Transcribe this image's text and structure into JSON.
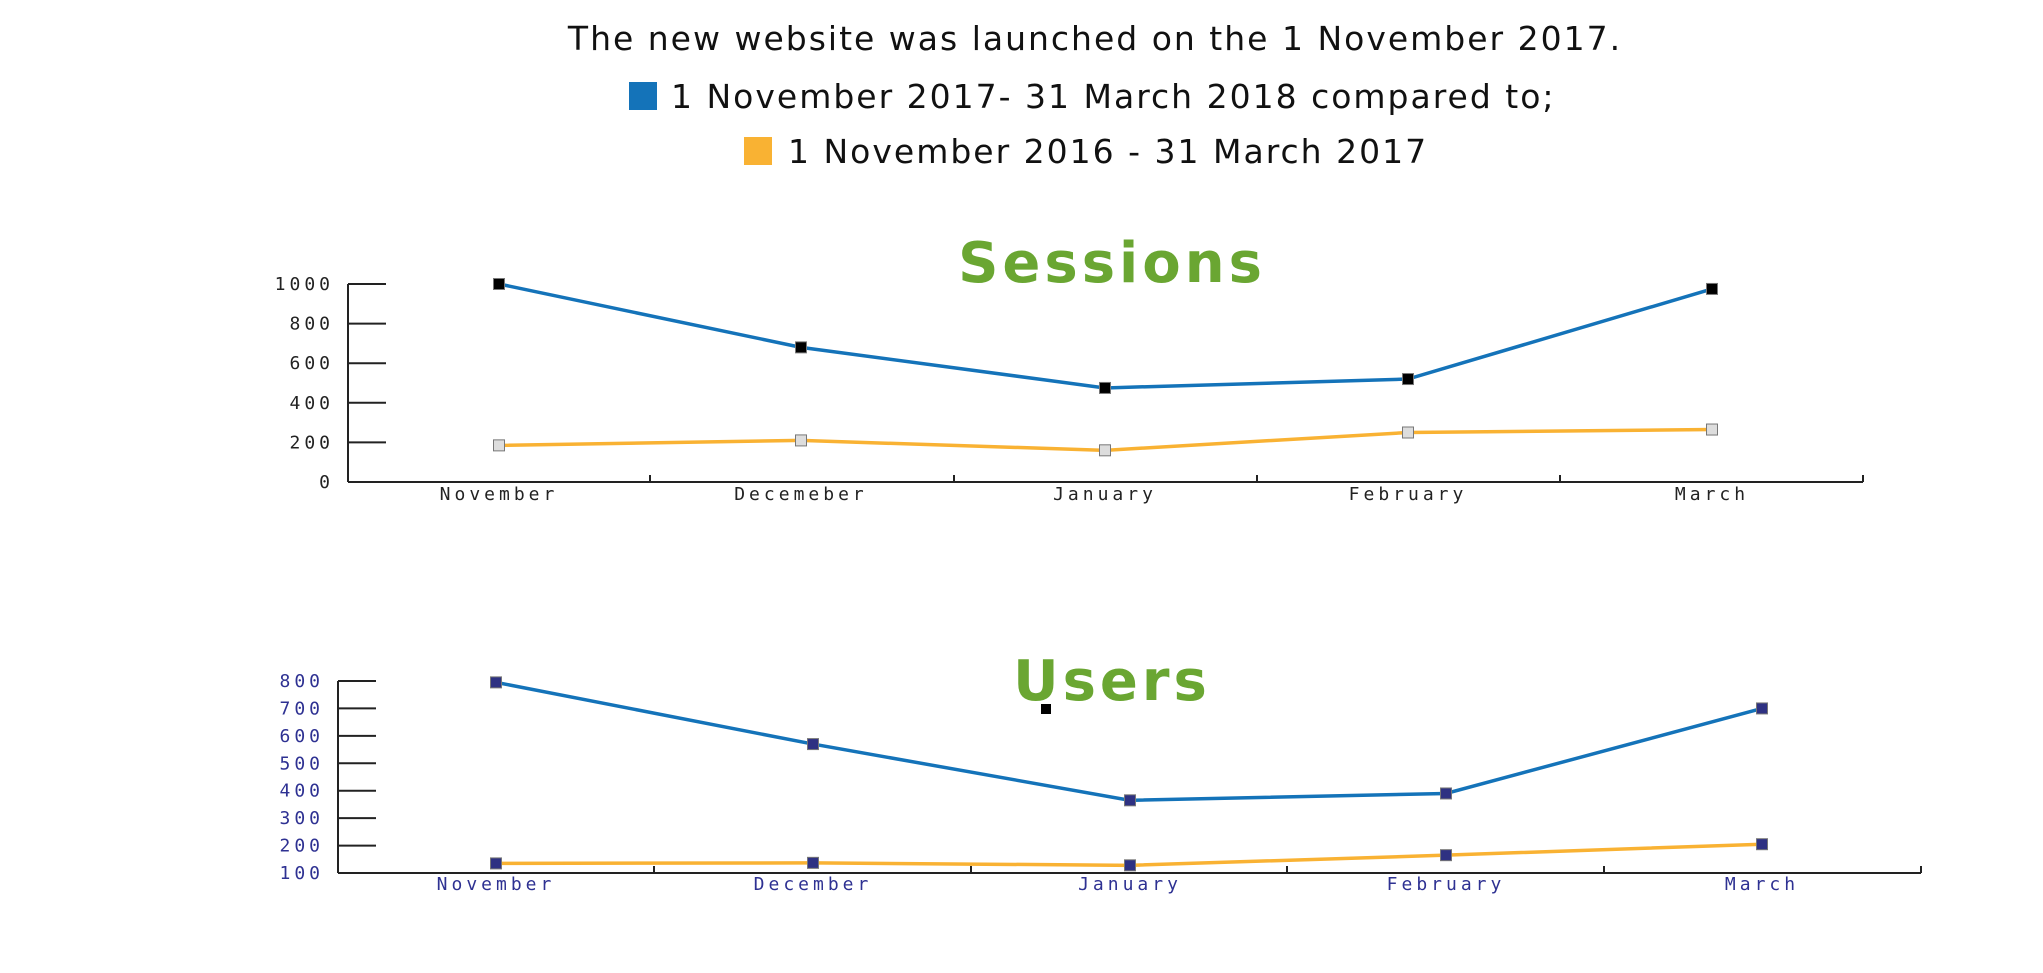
{
  "header": {
    "line1": "The new website was launched on the 1 November 2017.",
    "legend": [
      {
        "label": "1 November 2017- 31 March 2018 compared to;",
        "color": "#1473b9"
      },
      {
        "label": "1 November 2016 - 31 March 2017",
        "color": "#f9b233"
      }
    ]
  },
  "chart_data": [
    {
      "type": "line",
      "title": "Sessions",
      "title_color": "#6aa632",
      "categories": [
        "November",
        "Decemeber",
        "January",
        "February",
        "March"
      ],
      "ylim": [
        0,
        1000
      ],
      "yticks": [
        "0",
        "200",
        "400",
        "600",
        "800",
        "1000"
      ],
      "ytick_values": [
        0,
        200,
        400,
        600,
        800,
        1000
      ],
      "series": [
        {
          "name": "1 November 2017- 31 March 2018",
          "color": "#1473b9",
          "marker_color": "#000000",
          "values": [
            1000,
            680,
            475,
            520,
            975
          ]
        },
        {
          "name": "1 November 2016 - 31 March 2017",
          "color": "#f9b233",
          "marker_color": "#dddddd",
          "values": [
            185,
            210,
            160,
            250,
            265
          ]
        }
      ]
    },
    {
      "type": "line",
      "title": "Users",
      "title_color": "#6aa632",
      "categories": [
        "November",
        "December",
        "January",
        "February",
        "March"
      ],
      "ylim": [
        100,
        800
      ],
      "yticks": [
        "100",
        "200",
        "300",
        "400",
        "500",
        "600",
        "700",
        "800"
      ],
      "ytick_values": [
        100,
        200,
        300,
        400,
        500,
        600,
        700,
        800
      ],
      "series": [
        {
          "name": "1 November 2017- 31 March 2018",
          "color": "#1473b9",
          "marker_color": "#2e3182",
          "values": [
            795,
            570,
            365,
            390,
            700
          ]
        },
        {
          "name": "1 November 2016 - 31 March 2017",
          "color": "#f9b233",
          "marker_color": "#2e3182",
          "values": [
            135,
            137,
            128,
            165,
            205
          ]
        }
      ]
    }
  ]
}
